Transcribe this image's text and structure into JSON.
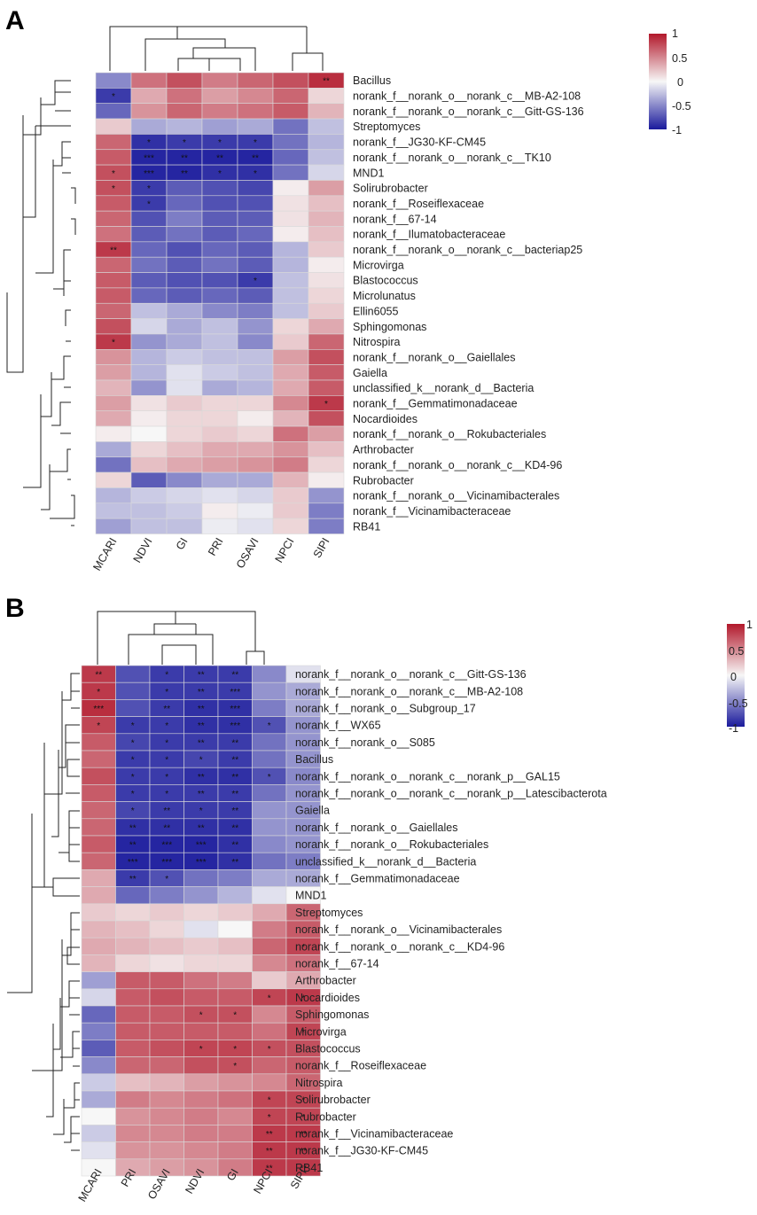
{
  "chart_data": [
    {
      "type": "heatmap",
      "panel": "A",
      "columns": [
        "MCARI",
        "NDVI",
        "GI",
        "PRI",
        "OSAVI",
        "NPCI",
        "SIPI"
      ],
      "rows": [
        "Bacillus",
        "norank_f__norank_o__norank_c__MB-A2-108",
        "norank_f__norank_o__norank_c__Gitt-GS-136",
        "Streptomyces",
        "norank_f__JG30-KF-CM45",
        "norank_f__norank_o__norank_c__TK10",
        "MND1",
        "Solirubrobacter",
        "norank_f__Roseiflexaceae",
        "norank_f__67-14",
        "norank_f__Ilumatobacteraceae",
        "norank_f__norank_o__norank_c__bacteriap25",
        "Microvirga",
        "Blastococcus",
        "Microlunatus",
        "Ellin6055",
        "Sphingomonas",
        "Nitrospira",
        "norank_f__norank_o__Gaiellales",
        "Gaiella",
        "unclassified_k__norank_d__Bacteria",
        "norank_f__Gemmatimonadaceae",
        "Nocardioides",
        "norank_f__norank_o__Rokubacteriales",
        "Arthrobacter",
        "norank_f__norank_o__norank_c__KD4-96",
        "Rubrobacter",
        "norank_f__norank_o__Vicinamibacterales",
        "norank_f__Vicinamibacteraceae",
        "RB41"
      ],
      "values": [
        [
          -0.5,
          0.6,
          0.75,
          0.55,
          0.65,
          0.75,
          0.9
        ],
        [
          -0.85,
          0.35,
          0.6,
          0.4,
          0.5,
          0.65,
          0.15
        ],
        [
          -0.65,
          0.45,
          0.65,
          0.55,
          0.6,
          0.7,
          0.3
        ],
        [
          0.2,
          -0.35,
          -0.3,
          -0.4,
          -0.35,
          -0.6,
          -0.25
        ],
        [
          0.65,
          -0.9,
          -0.85,
          -0.85,
          -0.85,
          -0.6,
          -0.3
        ],
        [
          0.7,
          -0.95,
          -0.95,
          -0.95,
          -0.95,
          -0.65,
          -0.25
        ],
        [
          0.75,
          -0.95,
          -0.95,
          -0.9,
          -0.9,
          -0.6,
          -0.15
        ],
        [
          0.75,
          -0.85,
          -0.7,
          -0.75,
          -0.8,
          0.05,
          0.4
        ],
        [
          0.7,
          -0.85,
          -0.65,
          -0.75,
          -0.75,
          0.1,
          0.25
        ],
        [
          0.65,
          -0.75,
          -0.55,
          -0.7,
          -0.7,
          0.1,
          0.3
        ],
        [
          0.6,
          -0.7,
          -0.6,
          -0.7,
          -0.65,
          0.05,
          0.25
        ],
        [
          0.85,
          -0.65,
          -0.75,
          -0.65,
          -0.7,
          -0.3,
          0.2
        ],
        [
          0.65,
          -0.6,
          -0.7,
          -0.6,
          -0.7,
          -0.3,
          0.05
        ],
        [
          0.7,
          -0.7,
          -0.75,
          -0.75,
          -0.85,
          -0.25,
          0.1
        ],
        [
          0.7,
          -0.65,
          -0.7,
          -0.65,
          -0.7,
          -0.25,
          0.15
        ],
        [
          0.65,
          -0.25,
          -0.35,
          -0.5,
          -0.55,
          -0.25,
          0.2
        ],
        [
          0.75,
          -0.15,
          -0.35,
          -0.25,
          -0.45,
          0.15,
          0.35
        ],
        [
          0.85,
          -0.45,
          -0.35,
          -0.25,
          -0.5,
          0.2,
          0.65
        ],
        [
          0.45,
          -0.3,
          -0.2,
          -0.25,
          -0.25,
          0.4,
          0.75
        ],
        [
          0.4,
          -0.3,
          -0.1,
          -0.2,
          -0.25,
          0.35,
          0.7
        ],
        [
          0.3,
          -0.45,
          -0.1,
          -0.35,
          -0.3,
          0.35,
          0.7
        ],
        [
          0.4,
          0.1,
          0.2,
          0.15,
          0.15,
          0.5,
          0.85
        ],
        [
          0.35,
          0.05,
          0.15,
          0.15,
          0.05,
          0.3,
          0.75
        ],
        [
          0.05,
          0.0,
          0.15,
          0.2,
          0.15,
          0.6,
          0.4
        ],
        [
          -0.35,
          0.15,
          0.25,
          0.35,
          0.35,
          0.45,
          0.25
        ],
        [
          -0.6,
          0.25,
          0.35,
          0.4,
          0.45,
          0.55,
          0.15
        ],
        [
          0.15,
          -0.7,
          -0.5,
          -0.35,
          -0.35,
          0.3,
          0.05
        ],
        [
          -0.3,
          -0.2,
          -0.15,
          -0.1,
          -0.15,
          0.2,
          -0.45
        ],
        [
          -0.25,
          -0.25,
          -0.2,
          0.05,
          -0.05,
          0.2,
          -0.55
        ],
        [
          -0.4,
          -0.25,
          -0.25,
          -0.05,
          -0.1,
          0.15,
          -0.55
        ]
      ],
      "significance": [
        [
          "",
          "",
          "",
          "",
          "",
          "",
          "**"
        ],
        [
          "*",
          "",
          "",
          "",
          "",
          "",
          ""
        ],
        [
          "",
          "",
          "",
          "",
          "",
          "",
          ""
        ],
        [
          "",
          "",
          "",
          "",
          "",
          "",
          ""
        ],
        [
          "",
          "*",
          "*",
          "*",
          "*",
          "",
          ""
        ],
        [
          "",
          "***",
          "**",
          "**",
          "**",
          "",
          ""
        ],
        [
          "*",
          "***",
          "**",
          "*",
          "*",
          "",
          ""
        ],
        [
          "*",
          "*",
          "",
          "",
          "",
          "",
          ""
        ],
        [
          "",
          "*",
          "",
          "",
          "",
          "",
          ""
        ],
        [
          "",
          "",
          "",
          "",
          "",
          "",
          ""
        ],
        [
          "",
          "",
          "",
          "",
          "",
          "",
          ""
        ],
        [
          "**",
          "",
          "",
          "",
          "",
          "",
          ""
        ],
        [
          "",
          "",
          "",
          "",
          "",
          "",
          ""
        ],
        [
          "",
          "",
          "",
          "",
          "*",
          "",
          ""
        ],
        [
          "",
          "",
          "",
          "",
          "",
          "",
          ""
        ],
        [
          "",
          "",
          "",
          "",
          "",
          "",
          ""
        ],
        [
          "",
          "",
          "",
          "",
          "",
          "",
          ""
        ],
        [
          "*",
          "",
          "",
          "",
          "",
          "",
          ""
        ],
        [
          "",
          "",
          "",
          "",
          "",
          "",
          ""
        ],
        [
          "",
          "",
          "",
          "",
          "",
          "",
          ""
        ],
        [
          "",
          "",
          "",
          "",
          "",
          "",
          ""
        ],
        [
          "",
          "",
          "",
          "",
          "",
          "",
          "*"
        ],
        [
          "",
          "",
          "",
          "",
          "",
          "",
          ""
        ],
        [
          "",
          "",
          "",
          "",
          "",
          "",
          ""
        ],
        [
          "",
          "",
          "",
          "",
          "",
          "",
          ""
        ],
        [
          "",
          "",
          "",
          "",
          "",
          "",
          ""
        ],
        [
          "",
          "",
          "",
          "",
          "",
          "",
          ""
        ],
        [
          "",
          "",
          "",
          "",
          "",
          "",
          ""
        ],
        [
          "",
          "",
          "",
          "",
          "",
          "",
          ""
        ],
        [
          "",
          "",
          "",
          "",
          "",
          "",
          ""
        ]
      ],
      "colorbar": {
        "ticks": [
          "1",
          "0.5",
          "0",
          "-0.5",
          "-1"
        ],
        "range": [
          -1,
          1
        ],
        "colors": {
          "high": "#b2182b",
          "mid": "#f7f7f7",
          "low": "#1a1a9c"
        }
      }
    },
    {
      "type": "heatmap",
      "panel": "B",
      "columns": [
        "MCARI",
        "PRI",
        "OSAVI",
        "NDVI",
        "GI",
        "NPCI",
        "SIPI"
      ],
      "rows": [
        "norank_f__norank_o__norank_c__Gitt-GS-136",
        "norank_f__norank_o__norank_c__MB-A2-108",
        "norank_f__norank_o__Subgroup_17",
        "norank_f__WX65",
        "norank_f__norank_o__S085",
        "Bacillus",
        "norank_f__norank_o__norank_c__norank_p__GAL15",
        "norank_f__norank_o__norank_c__norank_p__Latescibacterota",
        "Gaiella",
        "norank_f__norank_o__Gaiellales",
        "norank_f__norank_o__Rokubacteriales",
        "unclassified_k__norank_d__Bacteria",
        "norank_f__Gemmatimonadaceae",
        "MND1",
        "Streptomyces",
        "norank_f__norank_o__Vicinamibacterales",
        "norank_f__norank_o__norank_c__KD4-96",
        "norank_f__67-14",
        "Arthrobacter",
        "Nocardioides",
        "Sphingomonas",
        "Microvirga",
        "Blastococcus",
        "norank_f__Roseiflexaceae",
        "Nitrospira",
        "Solirubrobacter",
        "Rubrobacter",
        "norank_f__Vicinamibacteraceae",
        "norank_f__JG30-KF-CM45",
        "RB41"
      ],
      "values": [
        [
          0.85,
          -0.75,
          -0.85,
          -0.85,
          -0.85,
          -0.5,
          -0.1
        ],
        [
          0.85,
          -0.75,
          -0.85,
          -0.85,
          -0.85,
          -0.45,
          -0.35
        ],
        [
          0.9,
          -0.75,
          -0.85,
          -0.9,
          -0.9,
          -0.55,
          -0.35
        ],
        [
          0.8,
          -0.85,
          -0.85,
          -0.9,
          -0.9,
          -0.75,
          -0.45
        ],
        [
          0.7,
          -0.8,
          -0.85,
          -0.85,
          -0.85,
          -0.6,
          -0.45
        ],
        [
          0.65,
          -0.85,
          -0.85,
          -0.8,
          -0.85,
          -0.6,
          -0.45
        ],
        [
          0.75,
          -0.85,
          -0.85,
          -0.9,
          -0.9,
          -0.75,
          -0.5
        ],
        [
          0.7,
          -0.85,
          -0.85,
          -0.85,
          -0.85,
          -0.6,
          -0.45
        ],
        [
          0.65,
          -0.8,
          -0.85,
          -0.85,
          -0.85,
          -0.45,
          -0.45
        ],
        [
          0.65,
          -0.9,
          -0.9,
          -0.9,
          -0.9,
          -0.45,
          -0.45
        ],
        [
          0.7,
          -0.95,
          -0.95,
          -0.95,
          -0.9,
          -0.5,
          -0.45
        ],
        [
          0.65,
          -0.95,
          -0.95,
          -0.95,
          -0.9,
          -0.6,
          -0.55
        ],
        [
          0.35,
          -0.85,
          -0.75,
          -0.6,
          -0.55,
          -0.35,
          -0.35
        ],
        [
          0.35,
          -0.65,
          -0.55,
          -0.45,
          -0.3,
          -0.1,
          0.0
        ],
        [
          0.2,
          0.15,
          0.2,
          0.15,
          0.2,
          0.35,
          0.65
        ],
        [
          0.3,
          0.25,
          0.15,
          -0.1,
          0.0,
          0.55,
          0.7
        ],
        [
          0.35,
          0.3,
          0.25,
          0.2,
          0.25,
          0.65,
          0.8
        ],
        [
          0.3,
          0.15,
          0.1,
          0.15,
          0.15,
          0.5,
          0.6
        ],
        [
          -0.4,
          0.7,
          0.7,
          0.6,
          0.55,
          0.2,
          0.35
        ],
        [
          -0.15,
          0.7,
          0.75,
          0.7,
          0.7,
          0.8,
          0.85
        ],
        [
          -0.65,
          0.7,
          0.7,
          0.75,
          0.75,
          0.5,
          0.7
        ],
        [
          -0.55,
          0.7,
          0.7,
          0.7,
          0.7,
          0.6,
          0.8
        ],
        [
          -0.7,
          0.7,
          0.75,
          0.8,
          0.8,
          0.75,
          0.75
        ],
        [
          -0.5,
          0.65,
          0.65,
          0.75,
          0.75,
          0.65,
          0.7
        ],
        [
          -0.2,
          0.25,
          0.3,
          0.4,
          0.45,
          0.5,
          0.65
        ],
        [
          -0.35,
          0.55,
          0.5,
          0.55,
          0.6,
          0.8,
          0.8
        ],
        [
          0.0,
          0.45,
          0.5,
          0.55,
          0.5,
          0.8,
          0.8
        ],
        [
          -0.2,
          0.5,
          0.5,
          0.55,
          0.55,
          0.85,
          0.85
        ],
        [
          -0.1,
          0.45,
          0.45,
          0.5,
          0.55,
          0.85,
          0.85
        ],
        [
          0.0,
          0.35,
          0.4,
          0.45,
          0.55,
          0.85,
          0.85
        ]
      ],
      "significance": [
        [
          "**",
          "",
          "*",
          "**",
          "**",
          "",
          ""
        ],
        [
          "*",
          "",
          "*",
          "**",
          "***",
          "",
          ""
        ],
        [
          "***",
          "",
          "**",
          "**",
          "***",
          "",
          ""
        ],
        [
          "*",
          "*",
          "*",
          "**",
          "***",
          "*",
          ""
        ],
        [
          "",
          "*",
          "*",
          "**",
          "**",
          "",
          ""
        ],
        [
          "",
          "*",
          "*",
          "*",
          "**",
          "",
          ""
        ],
        [
          "",
          "*",
          "*",
          "**",
          "**",
          "*",
          ""
        ],
        [
          "",
          "*",
          "*",
          "**",
          "**",
          "",
          ""
        ],
        [
          "",
          "*",
          "**",
          "*",
          "**",
          "",
          ""
        ],
        [
          "",
          "**",
          "**",
          "**",
          "**",
          "",
          ""
        ],
        [
          "",
          "**",
          "***",
          "***",
          "**",
          "",
          ""
        ],
        [
          "",
          "***",
          "***",
          "***",
          "**",
          "",
          ""
        ],
        [
          "",
          "**",
          "*",
          "",
          "",
          "",
          ""
        ],
        [
          "",
          "",
          "",
          "",
          "",
          "",
          ""
        ],
        [
          "",
          "",
          "",
          "",
          "",
          "",
          ""
        ],
        [
          "",
          "",
          "",
          "",
          "",
          "",
          ""
        ],
        [
          "",
          "",
          "",
          "",
          "",
          "",
          "*"
        ],
        [
          "",
          "",
          "",
          "",
          "",
          "",
          ""
        ],
        [
          "",
          "",
          "",
          "",
          "",
          "",
          ""
        ],
        [
          "",
          "",
          "",
          "",
          "",
          "*",
          "*"
        ],
        [
          "",
          "",
          "",
          "*",
          "*",
          "",
          ""
        ],
        [
          "",
          "",
          "",
          "",
          "",
          "",
          "*"
        ],
        [
          "",
          "",
          "",
          "*",
          "*",
          "*",
          ""
        ],
        [
          "",
          "",
          "",
          "",
          "*",
          "",
          ""
        ],
        [
          "",
          "",
          "",
          "",
          "",
          "",
          ""
        ],
        [
          "",
          "",
          "",
          "",
          "",
          "*",
          "*"
        ],
        [
          "",
          "",
          "",
          "",
          "",
          "*",
          "*"
        ],
        [
          "",
          "",
          "",
          "",
          "",
          "**",
          "**"
        ],
        [
          "",
          "",
          "",
          "",
          "",
          "**",
          "**"
        ],
        [
          "",
          "",
          "",
          "",
          "",
          "**",
          "**"
        ]
      ],
      "colorbar": {
        "ticks": [
          "1",
          "0.5",
          "0",
          "-0.5",
          "-1"
        ],
        "range": [
          -1,
          1
        ],
        "colors": {
          "high": "#b2182b",
          "mid": "#f7f7f7",
          "low": "#1a1a9c"
        }
      }
    }
  ]
}
